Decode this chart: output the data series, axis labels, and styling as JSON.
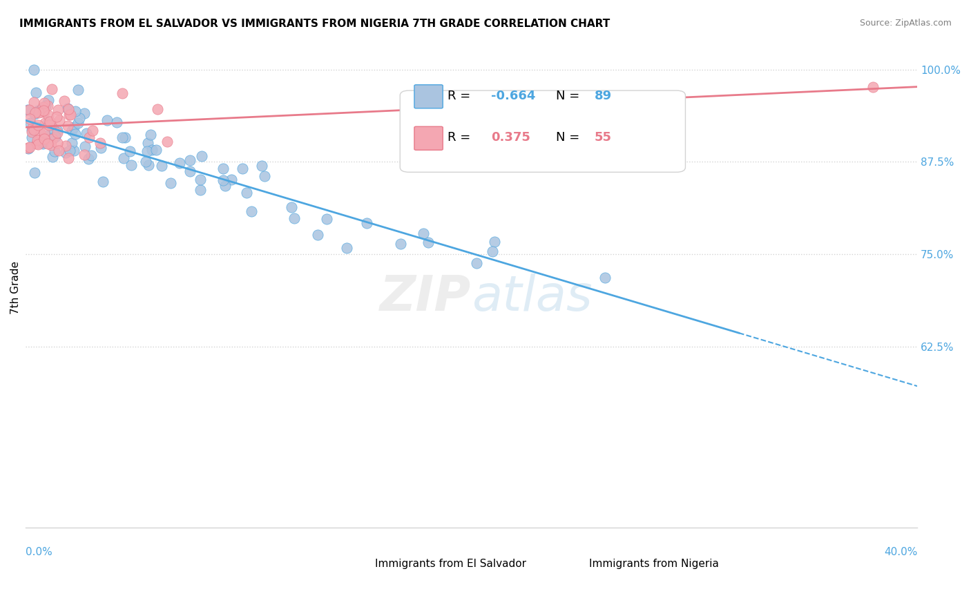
{
  "title": "IMMIGRANTS FROM EL SALVADOR VS IMMIGRANTS FROM NIGERIA 7TH GRADE CORRELATION CHART",
  "source": "Source: ZipAtlas.com",
  "ylabel": "7th Grade",
  "y_ticks": [
    0.625,
    0.75,
    0.875,
    1.0
  ],
  "y_tick_labels": [
    "62.5%",
    "75.0%",
    "87.5%",
    "100.0%"
  ],
  "x_range": [
    0.0,
    0.4
  ],
  "y_range": [
    0.38,
    1.03
  ],
  "legend1_R": "-0.664",
  "legend1_N": "89",
  "legend2_R": "0.375",
  "legend2_N": "55",
  "legend1_label": "Immigrants from El Salvador",
  "legend2_label": "Immigrants from Nigeria",
  "color_salvador": "#aac4e0",
  "color_nigeria": "#f4a7b2",
  "color_line_salvador": "#4da6e0",
  "color_line_nigeria": "#e87a8a",
  "title_fontsize": 11,
  "source_fontsize": 9
}
